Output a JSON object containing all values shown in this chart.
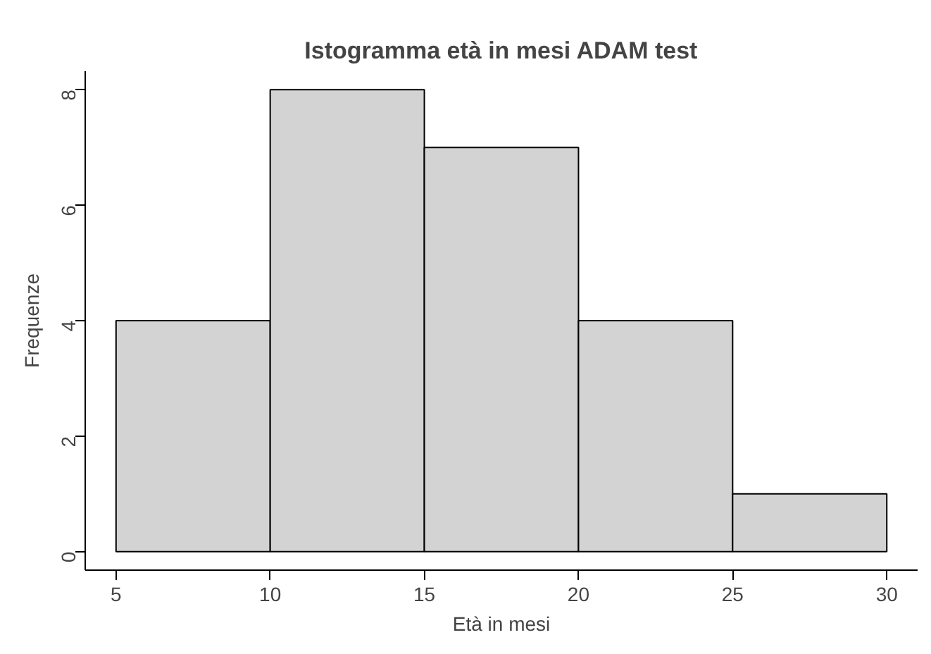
{
  "chart_data": {
    "type": "histogram",
    "title": "Istogramma età in mesi ADAM test",
    "xlabel": "Età in mesi",
    "ylabel": "Frequenze",
    "bins": [
      5,
      10,
      15,
      20,
      25,
      30
    ],
    "values": [
      4,
      8,
      7,
      4,
      1
    ],
    "color": "#d3d3d3",
    "xlim": [
      4,
      31
    ],
    "ylim": [
      -0.32,
      8.32
    ],
    "xticks": [
      5,
      10,
      15,
      20,
      25,
      30
    ],
    "yticks": [
      0,
      2,
      4,
      6,
      8
    ],
    "grid": false
  }
}
